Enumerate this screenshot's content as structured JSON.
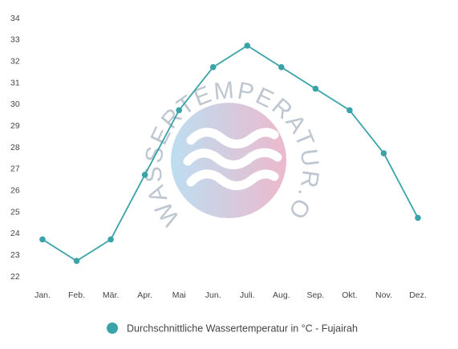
{
  "chart_data": {
    "type": "line",
    "categories": [
      "Jan.",
      "Feb.",
      "Mär.",
      "Apr.",
      "Mai",
      "Jun.",
      "Juli.",
      "Aug.",
      "Sep.",
      "Okt.",
      "Nov.",
      "Dez."
    ],
    "series": [
      {
        "name": "Durchschnittliche Wassertemperatur in °C - Fujairah",
        "values": [
          23.7,
          22.7,
          23.7,
          26.7,
          29.7,
          31.7,
          32.7,
          31.7,
          30.7,
          29.7,
          27.7,
          24.7
        ],
        "color": "#3aa3a8"
      }
    ],
    "ylim": [
      22,
      34
    ],
    "yticks": [
      22,
      23,
      24,
      25,
      26,
      27,
      28,
      29,
      30,
      31,
      32,
      33,
      34
    ],
    "grid": false,
    "legend_position": "bottom-center"
  },
  "watermark": {
    "text": "WASSERTEMPERATUR.ORG",
    "circle_color_left": "#b6dbef",
    "circle_color_right": "#ebb2c8",
    "letter_color": "#b8c0cc"
  }
}
